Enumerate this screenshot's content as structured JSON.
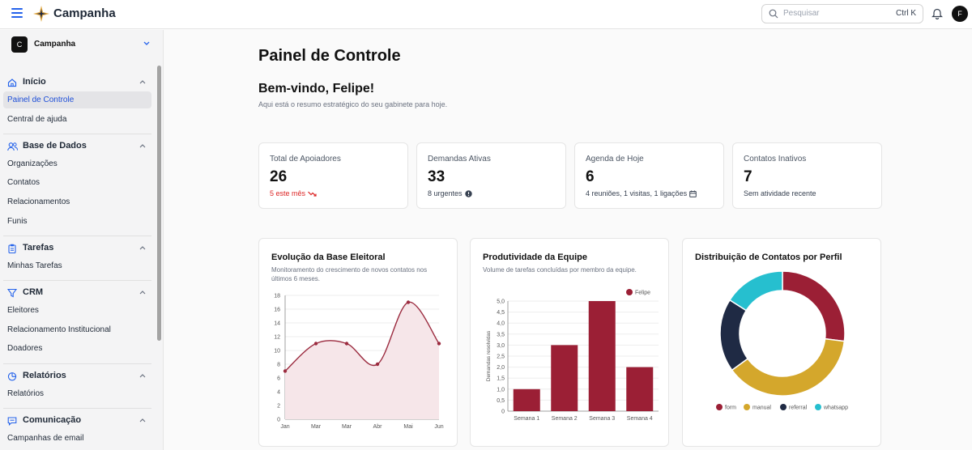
{
  "header": {
    "app_title": "Campanha",
    "search_placeholder": "Pesquisar",
    "search_shortcut": "Ctrl K",
    "avatar_initial": "F"
  },
  "sidebar": {
    "workspace": {
      "initial": "C",
      "name": "Campanha"
    },
    "sections": [
      {
        "title": "Início",
        "icon": "home-icon",
        "items": [
          "Painel de Controle",
          "Central de ajuda"
        ]
      },
      {
        "title": "Base de Dados",
        "icon": "users-icon",
        "items": [
          "Organizações",
          "Contatos",
          "Relacionamentos",
          "Funis"
        ]
      },
      {
        "title": "Tarefas",
        "icon": "clipboard-icon",
        "items": [
          "Minhas Tarefas"
        ]
      },
      {
        "title": "CRM",
        "icon": "filter-icon",
        "items": [
          "Eleitores",
          "Relacionamento Institucional",
          "Doadores"
        ]
      },
      {
        "title": "Relatórios",
        "icon": "chart-pie-icon",
        "items": [
          "Relatórios"
        ]
      },
      {
        "title": "Comunicação",
        "icon": "message-icon",
        "items": [
          "Campanhas de email"
        ]
      }
    ],
    "active_item": "Painel de Controle"
  },
  "main": {
    "page_title": "Painel de Controle",
    "welcome": "Bem-vindo, Felipe!",
    "subtitle": "Aqui está o resumo estratégico do seu gabinete para hoje.",
    "stats": [
      {
        "label": "Total de Apoiadores",
        "value": "26",
        "note": "5 este mês",
        "note_icon": "trending-down-icon"
      },
      {
        "label": "Demandas Ativas",
        "value": "33",
        "note": "8 urgentes",
        "note_icon": "alert-icon"
      },
      {
        "label": "Agenda de Hoje",
        "value": "6",
        "note": "4 reuniões, 1 visitas, 1 ligações",
        "note_icon": "calendar-icon"
      },
      {
        "label": "Contatos Inativos",
        "value": "7",
        "note": "Sem atividade recente"
      }
    ],
    "cards": {
      "evolucao": {
        "title": "Evolução da Base Eleitoral",
        "description": "Monitoramento do crescimento de novos contatos nos últimos 6 meses."
      },
      "produtividade": {
        "title": "Produtividade da Equipe",
        "description": "Volume de tarefas concluídas por membro da equipe."
      },
      "distribuicao": {
        "title": "Distribuição de Contatos por Perfil"
      }
    }
  },
  "colors": {
    "accent": "#9b1f35",
    "line": "#9b2b3f",
    "blue": "#1d4ed8",
    "gold": "#d4a72c",
    "navy": "#1f2a44",
    "teal": "#26bfcf"
  },
  "chart_data": [
    {
      "type": "area",
      "title": "Evolução da Base Eleitoral",
      "categories": [
        "Jan",
        "Mar",
        "Mar",
        "Abr",
        "Mai",
        "Jun"
      ],
      "values": [
        7,
        11,
        11,
        8,
        17,
        11
      ],
      "ylim": [
        0,
        18
      ],
      "yticks": [
        0,
        2,
        4,
        6,
        8,
        10,
        12,
        14,
        16,
        18
      ],
      "grid": true
    },
    {
      "type": "bar",
      "title": "Produtividade da Equipe",
      "categories": [
        "Semana 1",
        "Semana 2",
        "Semana 3",
        "Semana 4"
      ],
      "series": [
        {
          "name": "Felipe",
          "values": [
            1,
            3,
            5,
            2
          ]
        }
      ],
      "ylabel": "Demandas resolvidas",
      "ylim": [
        0,
        5
      ],
      "yticks": [
        "0",
        "0,5",
        "1,0",
        "1,5",
        "2,0",
        "2,5",
        "3,0",
        "3,5",
        "4,0",
        "4,5",
        "5,0"
      ],
      "legend": "top-right",
      "grid": true
    },
    {
      "type": "pie",
      "title": "Distribuição de Contatos por Perfil",
      "labels": [
        "form",
        "manual",
        "referral",
        "whatsapp"
      ],
      "values": [
        27,
        38,
        19,
        16
      ],
      "legend": "bottom"
    }
  ]
}
